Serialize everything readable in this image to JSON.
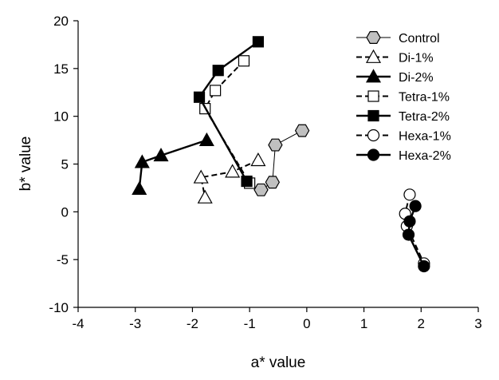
{
  "chart_data": {
    "type": "scatter",
    "title": "",
    "xlabel": "a* value",
    "ylabel": "b* value",
    "xlim": [
      -4,
      3
    ],
    "ylim": [
      -10,
      20
    ],
    "xticks": [
      "-4",
      "-3",
      "-2",
      "-1",
      "0",
      "1",
      "2",
      "3"
    ],
    "yticks": [
      "-10",
      "-5",
      "0",
      "5",
      "10",
      "15",
      "20"
    ],
    "grid": false,
    "legend_position": "top-right",
    "series": [
      {
        "name": "Control",
        "marker": "hexagon",
        "fill": "#c0c0c0",
        "line": "thin",
        "points": [
          [
            -0.08,
            8.5
          ],
          [
            -0.55,
            7.0
          ],
          [
            -0.6,
            3.1
          ],
          [
            -0.8,
            2.3
          ]
        ]
      },
      {
        "name": "Di-1%",
        "marker": "triangle",
        "fill": "#ffffff",
        "line": "dash",
        "points": [
          [
            -0.85,
            5.4
          ],
          [
            -1.3,
            4.2
          ],
          [
            -1.85,
            3.6
          ],
          [
            -1.78,
            1.5
          ]
        ]
      },
      {
        "name": "Di-2%",
        "marker": "triangle",
        "fill": "#000000",
        "line": "solid",
        "points": [
          [
            -1.75,
            7.5
          ],
          [
            -2.55,
            5.9
          ],
          [
            -2.88,
            5.2
          ],
          [
            -2.93,
            2.4
          ]
        ]
      },
      {
        "name": "Tetra-1%",
        "marker": "square",
        "fill": "#ffffff",
        "line": "dash",
        "points": [
          [
            -1.1,
            15.8
          ],
          [
            -1.6,
            12.7
          ],
          [
            -1.78,
            10.8
          ],
          [
            -1.0,
            3.0
          ]
        ]
      },
      {
        "name": "Tetra-2%",
        "marker": "square",
        "fill": "#000000",
        "line": "solid",
        "points": [
          [
            -0.85,
            17.8
          ],
          [
            -1.55,
            14.8
          ],
          [
            -1.88,
            12.0
          ],
          [
            -1.05,
            3.2
          ]
        ]
      },
      {
        "name": "Hexa-1%",
        "marker": "circle",
        "fill": "#ffffff",
        "line": "dash",
        "points": [
          [
            1.8,
            1.8
          ],
          [
            1.72,
            -0.2
          ],
          [
            1.75,
            -1.5
          ],
          [
            2.05,
            -5.4
          ]
        ]
      },
      {
        "name": "Hexa-2%",
        "marker": "circle",
        "fill": "#000000",
        "line": "solid",
        "points": [
          [
            1.9,
            0.6
          ],
          [
            1.8,
            -1.0
          ],
          [
            1.78,
            -2.4
          ],
          [
            2.05,
            -5.7
          ]
        ]
      }
    ]
  }
}
